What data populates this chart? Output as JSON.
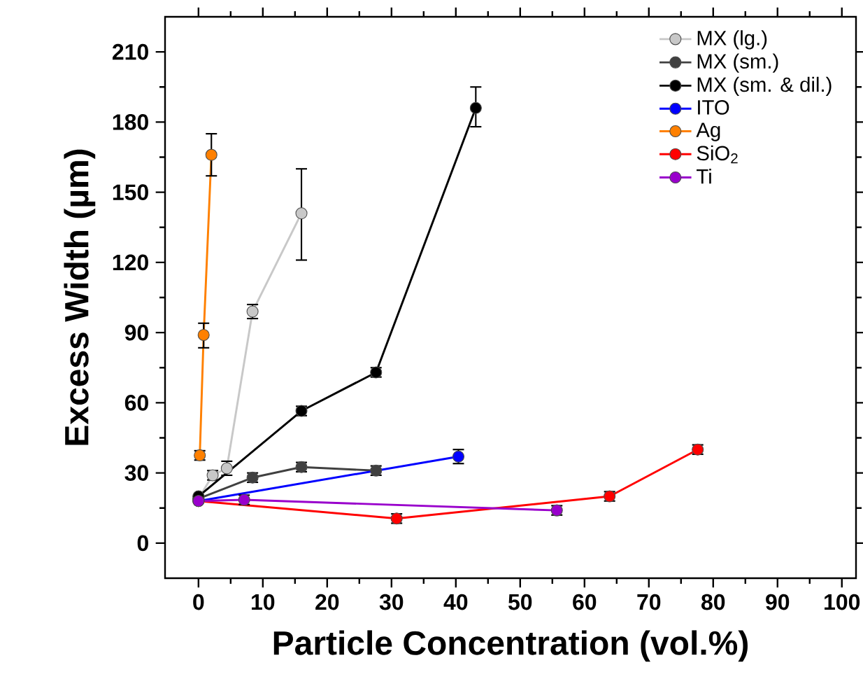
{
  "chart_data": {
    "type": "line",
    "xlabel": "Particle Concentration (vol.%)",
    "ylabel": "Excess Width (µm)",
    "xlim": [
      -5.2,
      102.2
    ],
    "ylim": [
      -15,
      225
    ],
    "xticks": [
      0,
      10,
      20,
      30,
      40,
      50,
      60,
      70,
      80,
      90,
      100
    ],
    "yticks": [
      0,
      30,
      60,
      90,
      120,
      150,
      180,
      210
    ],
    "grid": false,
    "legend": "top right",
    "marker": "circle",
    "line_style": "solid",
    "series": [
      {
        "name": "MX (lg.)",
        "color": "#c8c8c8",
        "x": [
          0,
          2.2,
          4.4,
          8.4,
          16
        ],
        "values": [
          19,
          29,
          32,
          99,
          141
        ],
        "errors": [
          null,
          2,
          3,
          3,
          [
            121,
            160
          ]
        ]
      },
      {
        "name": "MX (sm.)",
        "color": "#404040",
        "x": [
          0,
          8.4,
          16,
          27.6
        ],
        "values": [
          19,
          28,
          32.5,
          31
        ],
        "errors": [
          null,
          2,
          2,
          2
        ]
      },
      {
        "name": "MX (sm. & dil.)",
        "color": "#000000",
        "x": [
          0,
          16,
          27.6,
          43.1
        ],
        "values": [
          20,
          56.5,
          73,
          186
        ],
        "errors": [
          null,
          2,
          2,
          [
            178,
            195
          ]
        ]
      },
      {
        "name": "ITO",
        "color": "#0000ff",
        "x": [
          0,
          40.4
        ],
        "values": [
          18,
          37
        ],
        "errors": [
          null,
          3
        ]
      },
      {
        "name": "Ag",
        "color": "#ff8000",
        "x": [
          0.2,
          0.8,
          2.0
        ],
        "values": [
          37.5,
          89,
          166
        ],
        "errors": [
          2,
          [
            83.5,
            94
          ],
          [
            157,
            175
          ]
        ]
      },
      {
        "name": "SiO$_{2}$",
        "color": "#ff0000",
        "x": [
          0,
          30.8,
          63.9,
          77.6
        ],
        "values": [
          18,
          10.5,
          20,
          40
        ],
        "errors": [
          null,
          2,
          2,
          2
        ]
      },
      {
        "name": "Ti",
        "color": "#9900cc",
        "x": [
          0,
          7.1,
          55.7
        ],
        "values": [
          18,
          18.5,
          14
        ],
        "errors": [
          null,
          2,
          2
        ]
      }
    ]
  }
}
